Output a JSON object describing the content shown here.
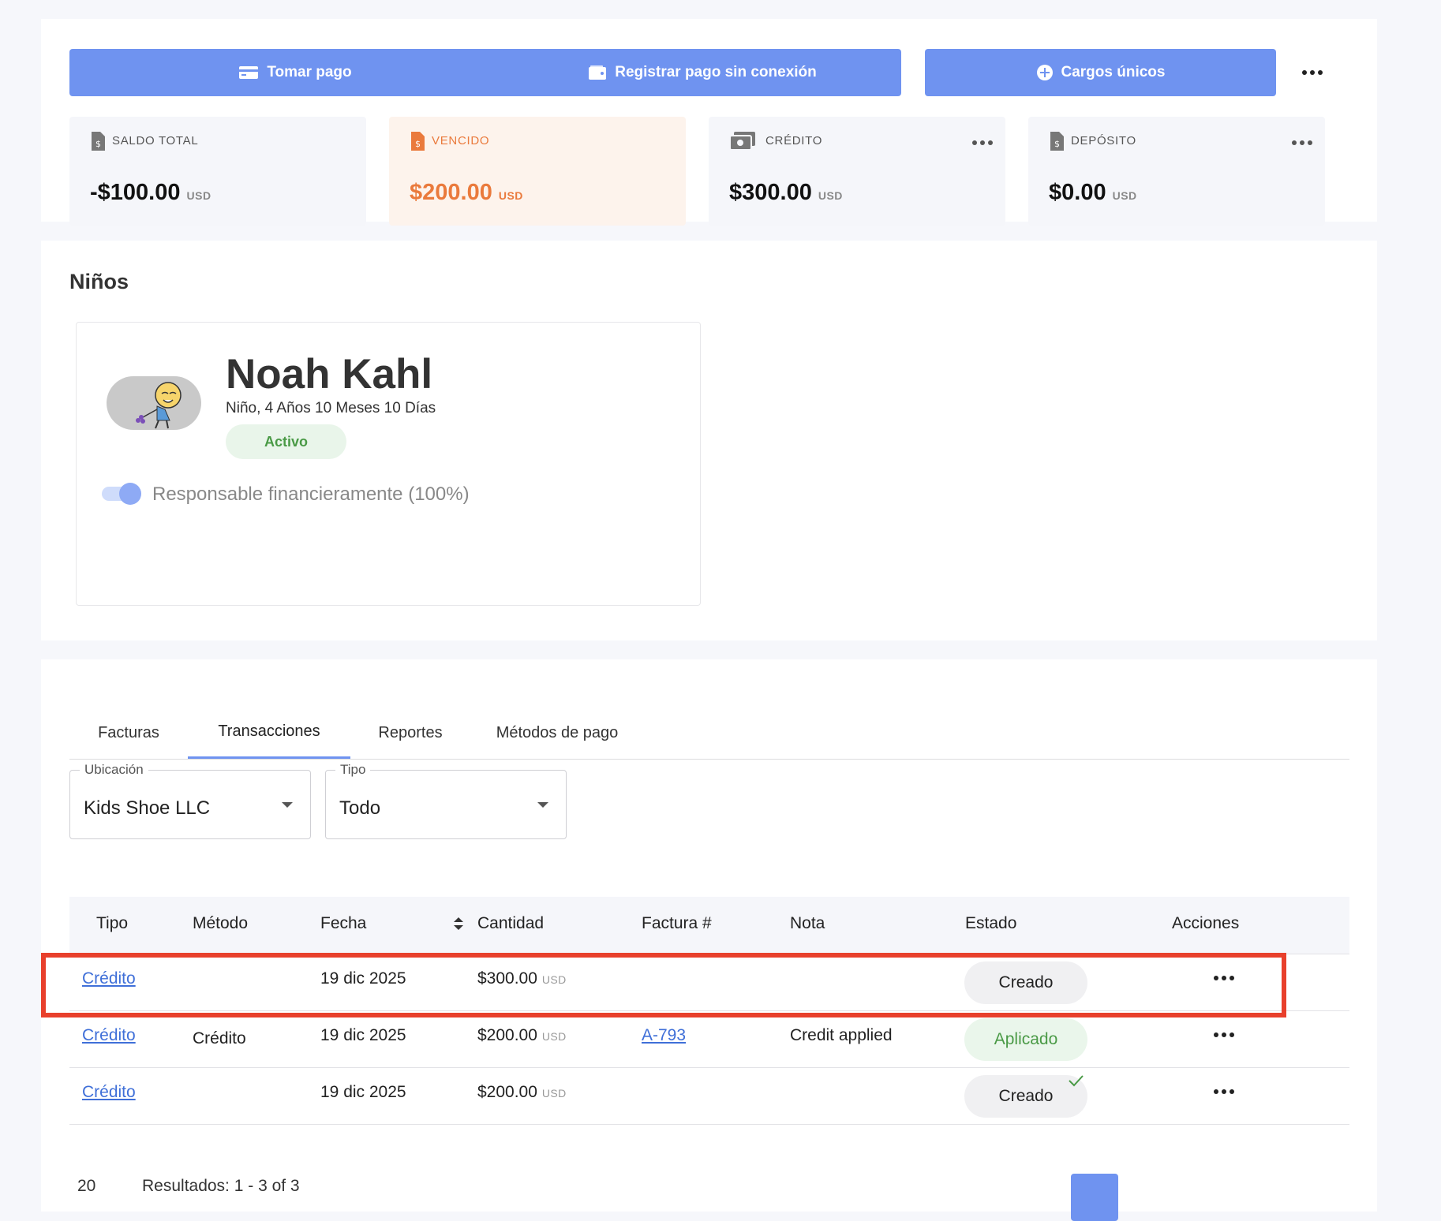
{
  "actions": {
    "take_payment": "Tomar pago",
    "offline_payment": "Registrar pago sin conexión",
    "one_time_charges": "Cargos únicos"
  },
  "balances": [
    {
      "label": "SALDO TOTAL",
      "amount": "-$100.00",
      "currency": "USD"
    },
    {
      "label": "VENCIDO",
      "amount": "$200.00",
      "currency": "USD"
    },
    {
      "label": "CRÉDITO",
      "amount": "$300.00",
      "currency": "USD"
    },
    {
      "label": "DEPÓSITO",
      "amount": "$0.00",
      "currency": "USD"
    }
  ],
  "kids": {
    "title": "Niños",
    "child": {
      "name": "Noah Kahl",
      "info": "Niño, 4 Años 10 Meses 10 Días",
      "status": "Activo",
      "toggle_label": "Responsable financieramente (100%)"
    }
  },
  "tabs": [
    "Facturas",
    "Transacciones",
    "Reportes",
    "Métodos de pago"
  ],
  "filters": {
    "location": {
      "label": "Ubicación",
      "value": "Kids Shoe LLC"
    },
    "type": {
      "label": "Tipo",
      "value": "Todo"
    }
  },
  "table": {
    "headers": [
      "Tipo",
      "Método",
      "Fecha",
      "Cantidad",
      "Factura #",
      "Nota",
      "Estado",
      "Acciones"
    ],
    "rows": [
      {
        "type": "Crédito",
        "method": "",
        "date": "19 dic 2025",
        "amount": "$300.00",
        "currency": "USD",
        "invoice": "",
        "note": "",
        "status": "Creado"
      },
      {
        "type": "Crédito",
        "method": "Crédito",
        "date": "19 dic 2025",
        "amount": "$200.00",
        "currency": "USD",
        "invoice": "A-793",
        "note": "Credit applied",
        "status": "Aplicado"
      },
      {
        "type": "Crédito",
        "method": "",
        "date": "19 dic 2025",
        "amount": "$200.00",
        "currency": "USD",
        "invoice": "",
        "note": "",
        "status": "Creado"
      }
    ]
  },
  "footer": {
    "page_size": "20",
    "results": "Resultados: 1 - 3 of 3"
  },
  "colors": {
    "accent": "#6f93f0",
    "overdue": "#ea7a3c",
    "success": "#4a9a46",
    "highlight": "#e8402c"
  }
}
